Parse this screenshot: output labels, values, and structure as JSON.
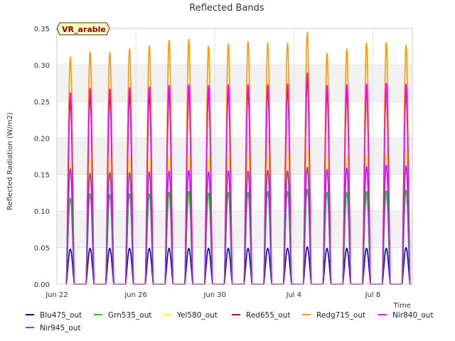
{
  "chart_data": {
    "type": "line",
    "title": "Reflected Bands",
    "xlabel": "Time",
    "ylabel": "Reflected Radiation (W/m2)",
    "ylim": [
      0,
      0.35
    ],
    "xlim": [
      "2024-06-22",
      "2024-07-10"
    ],
    "yticks": [
      0.0,
      0.05,
      0.1,
      0.15,
      0.2,
      0.25,
      0.3,
      0.35
    ],
    "ytick_labels": [
      "0.00",
      "0.05",
      "0.10",
      "0.15",
      "0.20",
      "0.25",
      "0.30",
      "0.35"
    ],
    "xticks": [
      "Jun 22",
      "Jun 26",
      "Jun 30",
      "Jul 4",
      "Jul 8"
    ],
    "grid": true,
    "legend_position": "bottom",
    "badge": "VR_arable",
    "days": [
      "Jun 22",
      "Jun 23",
      "Jun 24",
      "Jun 25",
      "Jun 26",
      "Jun 27",
      "Jun 28",
      "Jun 29",
      "Jun 30",
      "Jul 1",
      "Jul 2",
      "Jul 3",
      "Jul 4",
      "Jul 5",
      "Jul 6",
      "Jul 7",
      "Jul 8",
      "Jul 9"
    ],
    "series": [
      {
        "name": "Blu475_out",
        "color": "#0000cc",
        "daily_peak": [
          0.048,
          0.049,
          0.049,
          0.049,
          0.049,
          0.049,
          0.049,
          0.049,
          0.049,
          0.049,
          0.049,
          0.049,
          0.051,
          0.049,
          0.049,
          0.049,
          0.049,
          0.05
        ]
      },
      {
        "name": "Grn535_out",
        "color": "#00dd00",
        "daily_peak": [
          0.118,
          0.124,
          0.123,
          0.124,
          0.124,
          0.126,
          0.127,
          0.125,
          0.126,
          0.126,
          0.127,
          0.127,
          0.13,
          0.126,
          0.126,
          0.127,
          0.128,
          0.129
        ]
      },
      {
        "name": "Yel580_out",
        "color": "#ffff00",
        "daily_peak": [
          0.165,
          0.172,
          0.171,
          0.173,
          0.173,
          0.175,
          0.177,
          0.175,
          0.176,
          0.176,
          0.177,
          0.177,
          0.185,
          0.176,
          0.176,
          0.178,
          0.18,
          0.181
        ]
      },
      {
        "name": "Red655_out",
        "color": "#cc0000",
        "daily_peak": [
          0.25,
          0.256,
          0.255,
          0.257,
          0.258,
          0.262,
          0.264,
          0.262,
          0.263,
          0.263,
          0.264,
          0.265,
          0.28,
          0.262,
          0.263,
          0.265,
          0.266,
          0.264
        ]
      },
      {
        "name": "Redg715_out",
        "color": "#ff9900",
        "daily_peak": [
          0.311,
          0.318,
          0.317,
          0.322,
          0.326,
          0.334,
          0.335,
          0.326,
          0.329,
          0.332,
          0.33,
          0.33,
          0.345,
          0.316,
          0.322,
          0.33,
          0.331,
          0.327
        ]
      },
      {
        "name": "Nir840_out",
        "color": "#ff00ff",
        "daily_peak": [
          0.262,
          0.268,
          0.267,
          0.269,
          0.27,
          0.272,
          0.273,
          0.272,
          0.273,
          0.273,
          0.273,
          0.274,
          0.289,
          0.272,
          0.273,
          0.274,
          0.275,
          0.274
        ]
      },
      {
        "name": "Nir945_out",
        "color": "#9933cc",
        "daily_peak": [
          0.158,
          0.152,
          0.153,
          0.153,
          0.154,
          0.155,
          0.156,
          0.154,
          0.155,
          0.155,
          0.156,
          0.155,
          0.16,
          0.157,
          0.159,
          0.161,
          0.163,
          0.162
        ]
      }
    ]
  }
}
